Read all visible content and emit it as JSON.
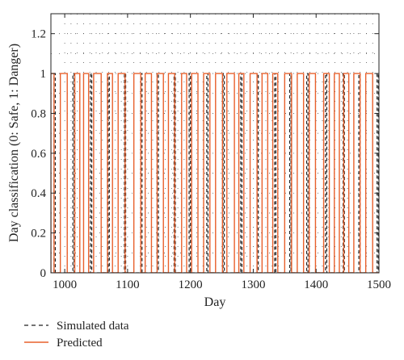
{
  "chart_data": {
    "type": "line",
    "title": "",
    "xlabel": "Day",
    "ylabel": "Day classification (0: Safe, 1: Danger)",
    "xlim": [
      978,
      1500
    ],
    "ylim": [
      0,
      1.3
    ],
    "xticks": [
      1000,
      1100,
      1200,
      1300,
      1400,
      1500
    ],
    "yticks": [
      0,
      0.2,
      0.4,
      0.6,
      0.8,
      1,
      1.2
    ],
    "grid": "dotted",
    "legend": "bottom-left",
    "colors": {
      "simulated": "#222222",
      "predicted": "#e8602c"
    },
    "series": [
      {
        "name": "Simulated data",
        "style": "dashed",
        "danger_intervals": [
          [
            983,
            985
          ],
          [
            1013,
            1015
          ],
          [
            1041,
            1043
          ],
          [
            1069,
            1071
          ],
          [
            1095,
            1097
          ],
          [
            1121,
            1123
          ],
          [
            1147,
            1149
          ],
          [
            1174,
            1176
          ],
          [
            1198,
            1200
          ],
          [
            1226,
            1228
          ],
          [
            1252,
            1254
          ],
          [
            1280,
            1282
          ],
          [
            1306,
            1308
          ],
          [
            1334,
            1336
          ],
          [
            1358,
            1360
          ],
          [
            1385,
            1387
          ],
          [
            1415,
            1417
          ],
          [
            1443,
            1445
          ],
          [
            1468,
            1470
          ],
          [
            1497,
            1499
          ]
        ]
      },
      {
        "name": "Predicted",
        "style": "solid",
        "danger_intervals": [
          [
            978,
            983
          ],
          [
            993,
            1004
          ],
          [
            1016,
            1024
          ],
          [
            1030,
            1038
          ],
          [
            1046,
            1058
          ],
          [
            1068,
            1076
          ],
          [
            1085,
            1096
          ],
          [
            1110,
            1121
          ],
          [
            1128,
            1138
          ],
          [
            1147,
            1157
          ],
          [
            1165,
            1175
          ],
          [
            1186,
            1194
          ],
          [
            1202,
            1212
          ],
          [
            1221,
            1231
          ],
          [
            1240,
            1251
          ],
          [
            1258,
            1270
          ],
          [
            1277,
            1285
          ],
          [
            1295,
            1306
          ],
          [
            1314,
            1323
          ],
          [
            1331,
            1339
          ],
          [
            1350,
            1361
          ],
          [
            1370,
            1380
          ],
          [
            1389,
            1399
          ],
          [
            1412,
            1421
          ],
          [
            1429,
            1437
          ],
          [
            1444,
            1452
          ],
          [
            1460,
            1470
          ],
          [
            1479,
            1490
          ]
        ]
      }
    ]
  }
}
